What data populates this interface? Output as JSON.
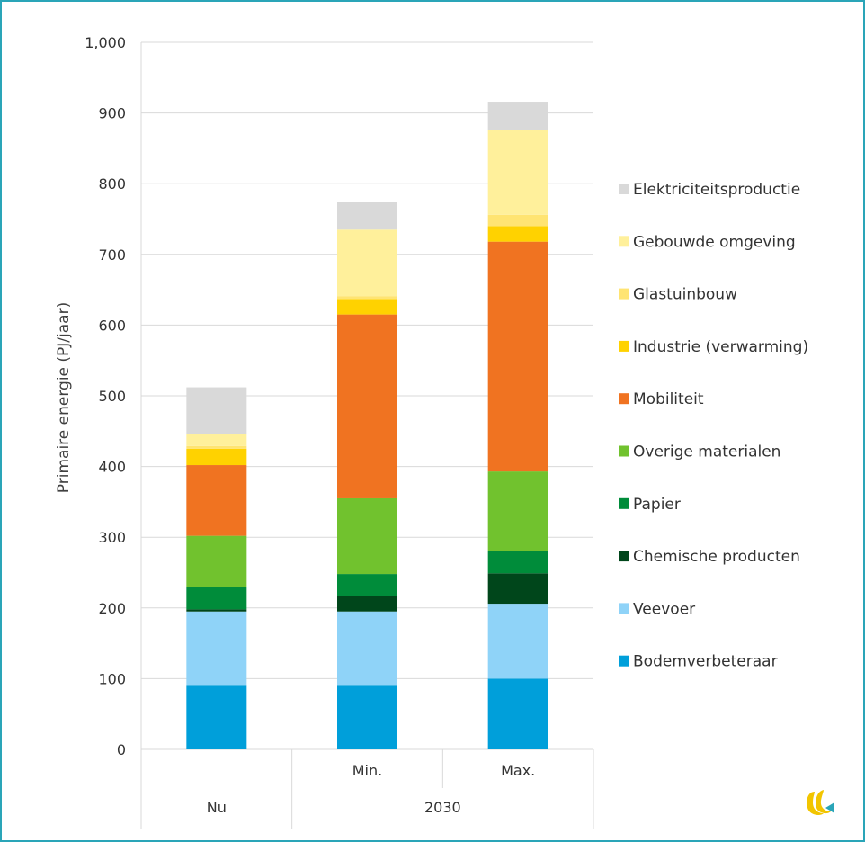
{
  "chart_data": {
    "type": "bar",
    "stacked": true,
    "ylabel": "Primaire energie (PJ/jaar)",
    "ylim": [
      0,
      1000
    ],
    "yticks": [
      0,
      100,
      200,
      300,
      400,
      500,
      600,
      700,
      800,
      900,
      1000
    ],
    "ytick_labels": [
      "0",
      "100",
      "200",
      "300",
      "400",
      "500",
      "600",
      "700",
      "800",
      "900",
      "1,000"
    ],
    "grid": true,
    "legend_position": "right",
    "categories": [
      {
        "label": "",
        "group": "Nu"
      },
      {
        "label": "Min.",
        "group": "2030"
      },
      {
        "label": "Max.",
        "group": "2030"
      }
    ],
    "groups": [
      {
        "label": "Nu",
        "span": 1
      },
      {
        "label": "2030",
        "span": 2
      }
    ],
    "series": [
      {
        "name": "Bodemverbeteraar",
        "color": "#009fda",
        "values": [
          90,
          90,
          100
        ]
      },
      {
        "name": "Veevoer",
        "color": "#8fd3f8",
        "values": [
          105,
          105,
          106
        ]
      },
      {
        "name": "Chemische producten",
        "color": "#00461b",
        "values": [
          3,
          22,
          43
        ]
      },
      {
        "name": "Papier",
        "color": "#008c3a",
        "values": [
          31,
          31,
          32
        ]
      },
      {
        "name": "Overige materialen",
        "color": "#71c22e",
        "values": [
          73,
          107,
          112
        ]
      },
      {
        "name": "Mobiliteit",
        "color": "#f07321",
        "values": [
          100,
          260,
          325
        ]
      },
      {
        "name": "Industrie (verwarming)",
        "color": "#ffd200",
        "values": [
          23,
          22,
          22
        ]
      },
      {
        "name": "Glastuinbouw",
        "color": "#ffe472",
        "values": [
          4,
          4,
          16
        ]
      },
      {
        "name": "Gebouwde omgeving",
        "color": "#fff09b",
        "values": [
          17,
          94,
          120
        ]
      },
      {
        "name": "Elektriciteitsproductie",
        "color": "#d9d9d9",
        "values": [
          66,
          39,
          40
        ]
      }
    ]
  },
  "logo": {
    "icon": "company-logo-icon",
    "colors": [
      "#f2c500",
      "#2aa5b8"
    ]
  }
}
